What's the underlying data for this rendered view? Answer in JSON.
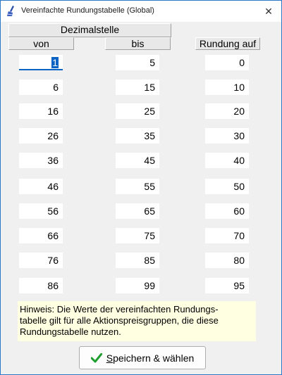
{
  "window": {
    "title": "Vereinfachte Rundungstabelle (Global)",
    "close_glyph": "✕",
    "icon": "broom-icon"
  },
  "headers": {
    "dezimalstelle": "Dezimalstelle",
    "von": "von",
    "bis": "bis",
    "rundung_auf": "Rundung auf"
  },
  "rows": [
    {
      "von": "1",
      "bis": "5",
      "rundung": "0"
    },
    {
      "von": "6",
      "bis": "15",
      "rundung": "10"
    },
    {
      "von": "16",
      "bis": "25",
      "rundung": "20"
    },
    {
      "von": "26",
      "bis": "35",
      "rundung": "30"
    },
    {
      "von": "36",
      "bis": "45",
      "rundung": "40"
    },
    {
      "von": "46",
      "bis": "55",
      "rundung": "50"
    },
    {
      "von": "56",
      "bis": "65",
      "rundung": "60"
    },
    {
      "von": "66",
      "bis": "75",
      "rundung": "70"
    },
    {
      "von": "76",
      "bis": "85",
      "rundung": "80"
    },
    {
      "von": "86",
      "bis": "99",
      "rundung": "95"
    }
  ],
  "hint": {
    "line1": "Hinweis: Die Werte der vereinfachten Rundungs-",
    "line2": "tabelle gilt für alle Aktionspreisgruppen, die diese",
    "line3": "Rundungstabelle nutzen."
  },
  "save_button": {
    "mnemonic": "S",
    "label_rest": "peichern & wählen",
    "icon": "checkmark-icon",
    "icon_color": "#1e9e2e"
  },
  "colors": {
    "accent": "#0b63c4",
    "hint_bg": "#ffffe1"
  }
}
